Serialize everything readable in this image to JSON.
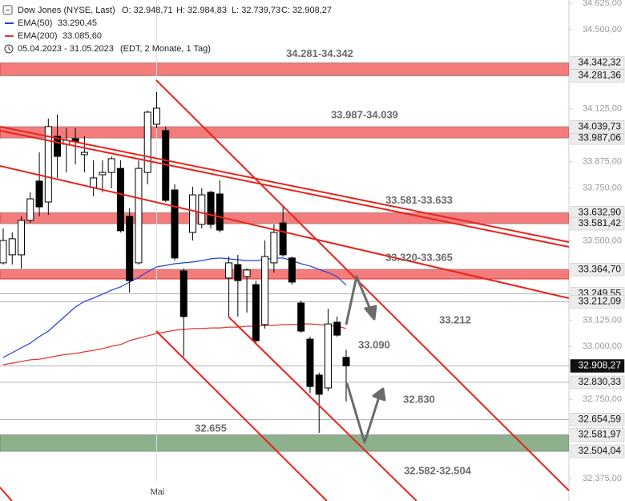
{
  "chart_data": {
    "type": "candlestick",
    "title": "Dow Jones (NYSE, Last)",
    "ohlc_header": [
      "O: 32.948,71",
      "H: 32.984,83",
      "L: 32.739,73",
      "C: 32.908,27"
    ],
    "range": "05.04.2023 - 31.05.2023",
    "range_note": "(EDT, 2 Monate, 1 Tag)",
    "categories": [
      null,
      null,
      null,
      null,
      null,
      null,
      null,
      null,
      null,
      null,
      null,
      null,
      null,
      null,
      null,
      null,
      null,
      "Mai",
      null,
      null,
      null,
      null,
      null,
      null,
      null,
      null,
      null,
      null,
      null,
      null,
      null,
      null,
      null,
      null,
      null,
      null,
      null,
      null,
      null
    ],
    "open": [
      33396,
      33434,
      33434,
      33597,
      33783,
      33684,
      33995,
      33957,
      33984,
      33908,
      33752,
      33813,
      33824,
      33843,
      33616,
      33396,
      33824,
      34052,
      34022,
      33741,
      33358,
      33540,
      33578,
      33730,
      33722,
      33324,
      33388,
      33331,
      33293,
      33104,
      33396,
      33585,
      33419,
      33206,
      33035,
      32865,
      32804,
      33115,
      32948.71
    ],
    "high": [
      33559,
      33540,
      33616,
      33730,
      33919,
      34079,
      34098,
      34033,
      34033,
      33995,
      33881,
      33881,
      33900,
      33881,
      33654,
      33881,
      34117,
      34204,
      34041,
      33768,
      33369,
      33756,
      33749,
      33737,
      33787,
      33426,
      33434,
      33369,
      33312,
      33502,
      33578,
      33661,
      33426,
      33217,
      33047,
      32876,
      33179,
      33142,
      32984.83
    ],
    "low": [
      33388,
      33388,
      33369,
      33585,
      33616,
      33623,
      33798,
      33824,
      33862,
      33824,
      33711,
      33730,
      33749,
      33540,
      33255,
      33388,
      33768,
      34033,
      33684,
      33407,
      32952,
      33502,
      33559,
      33559,
      33540,
      33142,
      33142,
      33161,
      33016,
      33085,
      33350,
      33426,
      33293,
      33066,
      32781,
      32591,
      32789,
      33047,
      32739.73
    ],
    "close": [
      33502,
      33510,
      33597,
      33699,
      33661,
      34041,
      33900,
      33976,
      33969,
      33919,
      33798,
      33824,
      33889,
      33548,
      33312,
      33843,
      34109,
      34128,
      33692,
      33419,
      33142,
      33718,
      33718,
      33578,
      33551,
      33396,
      33312,
      33362,
      33028,
      33426,
      33540,
      33434,
      33305,
      33073,
      32811,
      32774,
      33107,
      33054,
      32908.27
    ],
    "up_color": "#ffffff",
    "down_color": "#000000",
    "series": [
      {
        "name": "EMA(50)",
        "value_label": "33.290,45",
        "color": "#2140d8",
        "values": [
          32948,
          32971,
          32994,
          33016,
          33047,
          33073,
          33111,
          33149,
          33187,
          33214,
          33229,
          33248,
          33267,
          33282,
          33305,
          33327,
          33354,
          33377,
          33384,
          33392,
          33396,
          33400,
          33407,
          33415,
          33419,
          33415,
          33411,
          33407,
          33407,
          33411,
          33419,
          33419,
          33407,
          33392,
          33381,
          33365,
          33350,
          33331,
          33290.45
        ]
      },
      {
        "name": "EMA(200)",
        "value_label": "33.085,60",
        "color": "#e0392c",
        "values": [
          32914,
          32921,
          32929,
          32937,
          32940,
          32948,
          32956,
          32963,
          32967,
          32975,
          32982,
          32990,
          33001,
          33009,
          33028,
          33039,
          33051,
          33062,
          33069,
          33077,
          33081,
          33085,
          33085,
          33088,
          33088,
          33092,
          33092,
          33096,
          33096,
          33100,
          33100,
          33104,
          33104,
          33107,
          33107,
          33104,
          33100,
          33096,
          33085.6
        ]
      }
    ],
    "zones": [
      {
        "low": 34281.36,
        "high": 34342.32,
        "color": "#f47c7c",
        "label": "34.281-34.342"
      },
      {
        "low": 33987.06,
        "high": 34039.73,
        "color": "#f47c7c",
        "label": "33.987-34.039"
      },
      {
        "low": 33581.42,
        "high": 33632.9,
        "color": "#f47c7c",
        "label": "33.581-33.633"
      },
      {
        "low": 33320,
        "high": 33364.7,
        "color": "#f47c7c",
        "label": "33.320-33.365"
      },
      {
        "low": 32504.04,
        "high": 32581.97,
        "color": "#8db08d",
        "label": "32.582-32.504"
      }
    ],
    "levels": [
      {
        "value": 34342.32,
        "label": "34.342,32"
      },
      {
        "value": 34281.36,
        "label": "34.281,36"
      },
      {
        "value": 33987.06,
        "label": "33.987,06"
      },
      {
        "value": 34039.73,
        "label": "34.039,73"
      },
      {
        "value": 33632.9,
        "label": "33.632,90"
      },
      {
        "value": 33581.42,
        "label": "33.581,42"
      },
      {
        "value": 33364.7,
        "label": "33.364,70"
      },
      {
        "value": 33249.55,
        "label": "33.249,55"
      },
      {
        "value": 33212.09,
        "label": "33.212,09"
      },
      {
        "value": 32908.27,
        "label": "32.908,27"
      },
      {
        "value": 32830.33,
        "label": "32.830,33"
      },
      {
        "value": 32654.59,
        "label": "32.654,59"
      },
      {
        "value": 32581.97,
        "label": "32.581,97"
      },
      {
        "value": 32504.04,
        "label": "32.504,04"
      }
    ],
    "annotations": [
      "33.212",
      "33.090",
      "32.830",
      "32.655"
    ],
    "ylim": [
      32269,
      34640
    ],
    "yticks": [
      {
        "value": 34625,
        "label": "34.625,00"
      },
      {
        "value": 34500,
        "label": "34.500,00"
      },
      {
        "value": 34125,
        "label": "34.125,00"
      },
      {
        "value": 33875,
        "label": "33.875,00"
      },
      {
        "value": 33750,
        "label": "33.750,00"
      },
      {
        "value": 33500,
        "label": "33.500,00"
      },
      {
        "value": 33125,
        "label": "33.125,00"
      },
      {
        "value": 33000,
        "label": "33.000,00"
      },
      {
        "value": 32750,
        "label": "32.750,00"
      },
      {
        "value": 32375,
        "label": "32.375,00"
      }
    ]
  }
}
